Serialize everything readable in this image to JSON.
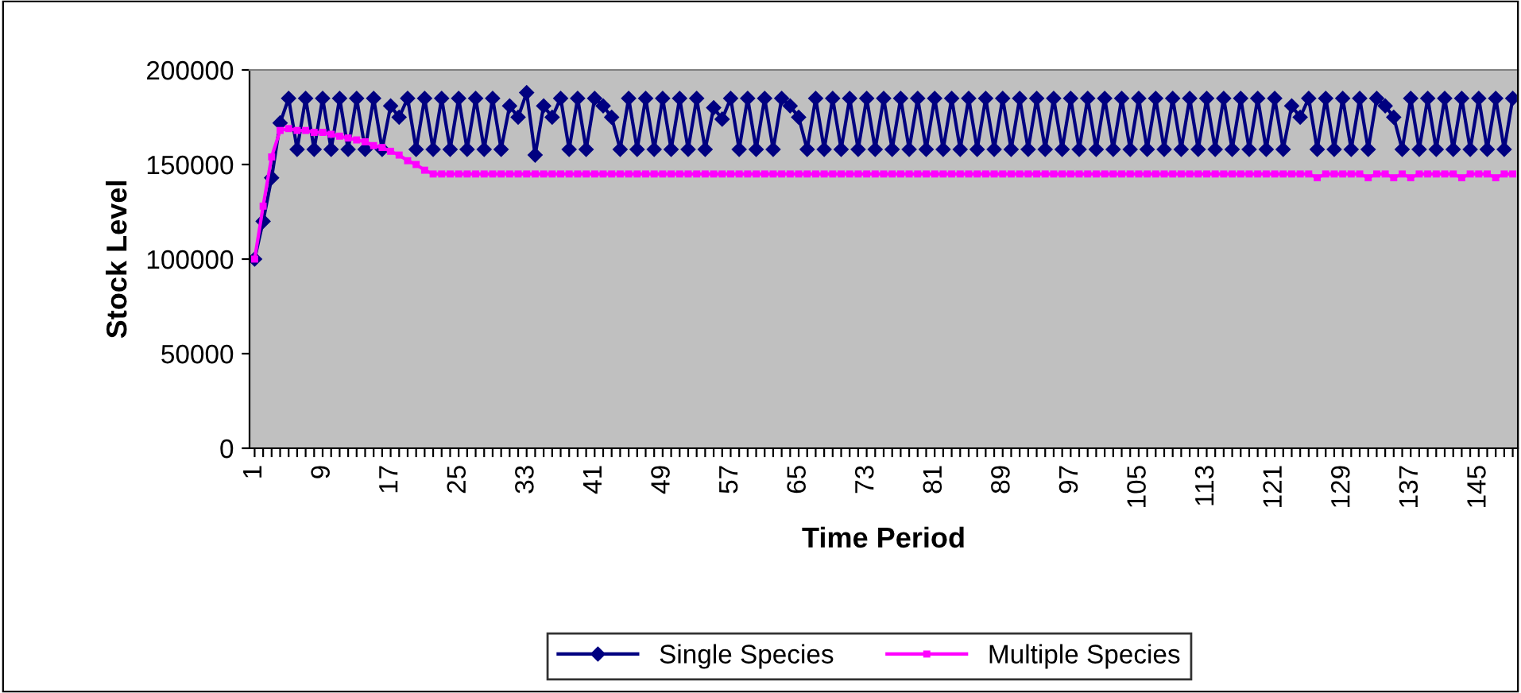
{
  "chart_data": {
    "type": "line",
    "xlabel": "Time Period",
    "ylabel": "Stock Level",
    "categories": [
      "1",
      null,
      null,
      null,
      null,
      null,
      null,
      null,
      "9",
      null,
      null,
      null,
      null,
      null,
      null,
      null,
      "17",
      null,
      null,
      null,
      null,
      null,
      null,
      null,
      "25",
      null,
      null,
      null,
      null,
      null,
      null,
      null,
      "33",
      null,
      null,
      null,
      null,
      null,
      null,
      null,
      "41",
      null,
      null,
      null,
      null,
      null,
      null,
      null,
      "49",
      null,
      null,
      null,
      null,
      null,
      null,
      null,
      "57",
      null,
      null,
      null,
      null,
      null,
      null,
      null,
      "65",
      null,
      null,
      null,
      null,
      null,
      null,
      null,
      "73",
      null,
      null,
      null,
      null,
      null,
      null,
      null,
      "81",
      null,
      null,
      null,
      null,
      null,
      null,
      null,
      "89",
      null,
      null,
      null,
      null,
      null,
      null,
      null,
      "97",
      null,
      null,
      null,
      null,
      null,
      null,
      null,
      "105",
      null,
      null,
      null,
      null,
      null,
      null,
      null,
      "113",
      null,
      null,
      null,
      null,
      null,
      null,
      null,
      "121",
      null,
      null,
      null,
      null,
      null,
      null,
      null,
      "129",
      null,
      null,
      null,
      null,
      null,
      null,
      null,
      "137",
      null,
      null,
      null,
      null,
      null,
      null,
      null,
      "145",
      null,
      null,
      null,
      null
    ],
    "ylim": [
      0,
      200000
    ],
    "yticks": [
      0,
      50000,
      100000,
      150000,
      200000
    ],
    "grid": false,
    "legend": "bottom",
    "line_style": "solid",
    "series": [
      {
        "name": "Single Species",
        "color": "#000080",
        "marker": "diamond",
        "values": [
          100000,
          120000,
          143000,
          172000,
          185000,
          158000,
          185000,
          158000,
          185000,
          158000,
          185000,
          158000,
          185000,
          158000,
          185000,
          158000,
          181000,
          175000,
          185000,
          158000,
          185000,
          158000,
          185000,
          158000,
          185000,
          158000,
          185000,
          158000,
          185000,
          158000,
          181000,
          175000,
          188000,
          155000,
          181000,
          175000,
          185000,
          158000,
          185000,
          158000,
          185000,
          181000,
          175000,
          158000,
          185000,
          158000,
          185000,
          158000,
          185000,
          158000,
          185000,
          158000,
          185000,
          158000,
          180000,
          174000,
          185000,
          158000,
          185000,
          158000,
          185000,
          158000,
          185000,
          181000,
          175000,
          158000,
          185000,
          158000,
          185000,
          158000,
          185000,
          158000,
          185000,
          158000,
          185000,
          158000,
          185000,
          158000,
          185000,
          158000,
          185000,
          158000,
          185000,
          158000,
          185000,
          158000,
          185000,
          158000,
          185000,
          158000,
          185000,
          158000,
          185000,
          158000,
          185000,
          158000,
          185000,
          158000,
          185000,
          158000,
          185000,
          158000,
          185000,
          158000,
          185000,
          158000,
          185000,
          158000,
          185000,
          158000,
          185000,
          158000,
          185000,
          158000,
          185000,
          158000,
          185000,
          158000,
          185000,
          158000,
          185000,
          158000,
          181000,
          175000,
          185000,
          158000,
          185000,
          158000,
          185000,
          158000,
          185000,
          158000,
          185000,
          181000,
          175000,
          158000,
          185000,
          158000,
          185000,
          158000,
          185000,
          158000,
          185000,
          158000,
          185000,
          158000,
          185000,
          158000,
          185000
        ]
      },
      {
        "name": "Multiple Species",
        "color": "#ff00ff",
        "marker": "square",
        "values": [
          100000,
          128000,
          154000,
          168000,
          169000,
          168000,
          168000,
          167000,
          167000,
          166000,
          165000,
          164000,
          163000,
          162000,
          160000,
          159000,
          157000,
          155000,
          152000,
          150000,
          147000,
          145000,
          145000,
          145000,
          145000,
          145000,
          145000,
          145000,
          145000,
          145000,
          145000,
          145000,
          145000,
          145000,
          145000,
          145000,
          145000,
          145000,
          145000,
          145000,
          145000,
          145000,
          145000,
          145000,
          145000,
          145000,
          145000,
          145000,
          145000,
          145000,
          145000,
          145000,
          145000,
          145000,
          145000,
          145000,
          145000,
          145000,
          145000,
          145000,
          145000,
          145000,
          145000,
          145000,
          145000,
          145000,
          145000,
          145000,
          145000,
          145000,
          145000,
          145000,
          145000,
          145000,
          145000,
          145000,
          145000,
          145000,
          145000,
          145000,
          145000,
          145000,
          145000,
          145000,
          145000,
          145000,
          145000,
          145000,
          145000,
          145000,
          145000,
          145000,
          145000,
          145000,
          145000,
          145000,
          145000,
          145000,
          145000,
          145000,
          145000,
          145000,
          145000,
          145000,
          145000,
          145000,
          145000,
          145000,
          145000,
          145000,
          145000,
          145000,
          145000,
          145000,
          145000,
          145000,
          145000,
          145000,
          145000,
          145000,
          145000,
          145000,
          145000,
          145000,
          145000,
          143000,
          145000,
          145000,
          145000,
          145000,
          145000,
          143000,
          145000,
          145000,
          143000,
          145000,
          143000,
          145000,
          145000,
          145000,
          145000,
          145000,
          143000,
          145000,
          145000,
          145000,
          143000,
          145000,
          145000
        ]
      }
    ]
  }
}
